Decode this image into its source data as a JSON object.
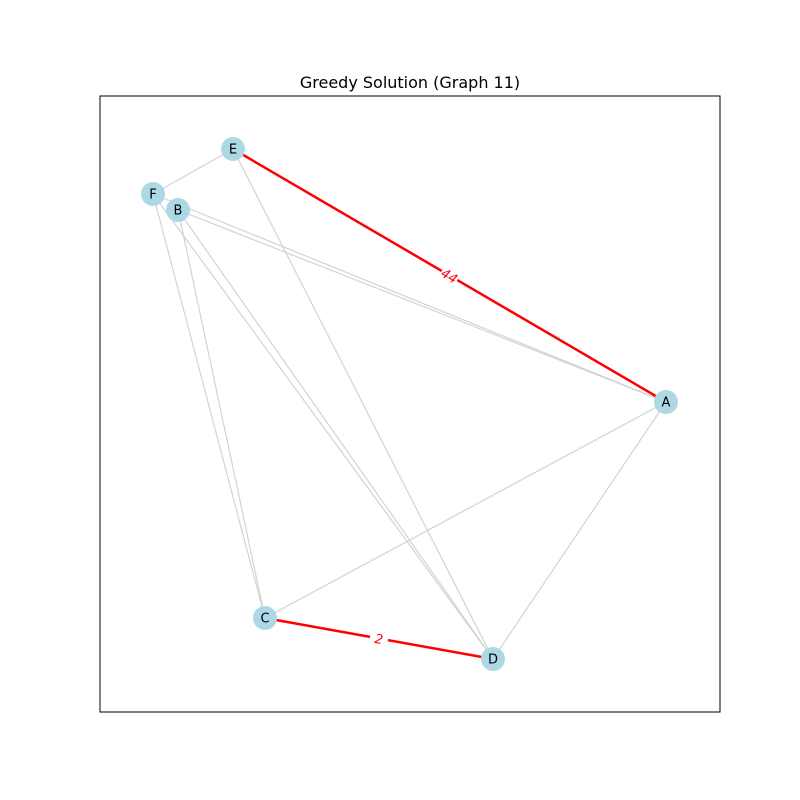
{
  "title": "Greedy Solution (Graph 11)",
  "colors": {
    "node_fill": "#add8e6",
    "edge": "#d3d3d3",
    "highlight": "#ff0000"
  },
  "nodes": [
    {
      "id": "E"
    },
    {
      "id": "F"
    },
    {
      "id": "B"
    },
    {
      "id": "A"
    },
    {
      "id": "C"
    },
    {
      "id": "D"
    }
  ],
  "edges": [
    {
      "from": "E",
      "to": "F"
    },
    {
      "from": "E",
      "to": "D"
    },
    {
      "from": "F",
      "to": "C"
    },
    {
      "from": "F",
      "to": "D"
    },
    {
      "from": "F",
      "to": "A"
    },
    {
      "from": "B",
      "to": "A"
    },
    {
      "from": "B",
      "to": "C"
    },
    {
      "from": "B",
      "to": "D"
    },
    {
      "from": "A",
      "to": "C"
    },
    {
      "from": "A",
      "to": "D"
    }
  ],
  "highlighted_edges": [
    {
      "from": "E",
      "to": "A",
      "label": "44"
    },
    {
      "from": "C",
      "to": "D",
      "label": "2"
    }
  ]
}
